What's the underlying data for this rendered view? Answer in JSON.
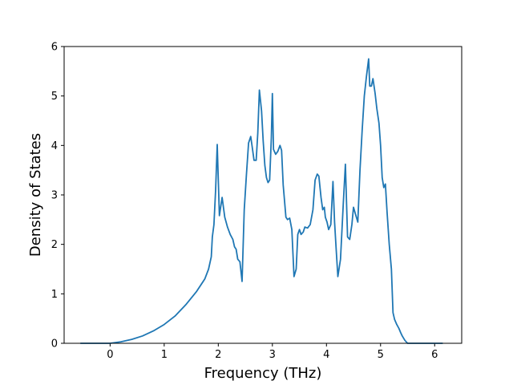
{
  "chart_data": {
    "type": "line",
    "title": "",
    "xlabel": "Frequency (THz)",
    "ylabel": "Density of States",
    "xlim": [
      -0.85,
      6.5
    ],
    "ylim": [
      0,
      6
    ],
    "xticks": [
      0,
      1,
      2,
      3,
      4,
      5,
      6
    ],
    "yticks": [
      0,
      1,
      2,
      3,
      4,
      5,
      6
    ],
    "xtick_labels": [
      "0",
      "1",
      "2",
      "3",
      "4",
      "5",
      "6"
    ],
    "ytick_labels": [
      "0",
      "1",
      "2",
      "3",
      "4",
      "5",
      "6"
    ],
    "grid": false,
    "legend": "none",
    "series": [
      {
        "color": "#1f77b4",
        "x": [
          -0.55,
          -0.3,
          0.0,
          0.2,
          0.4,
          0.6,
          0.8,
          1.0,
          1.2,
          1.4,
          1.6,
          1.75,
          1.82,
          1.87,
          1.89,
          1.92,
          1.95,
          1.98,
          2.02,
          2.07,
          2.12,
          2.17,
          2.22,
          2.27,
          2.3,
          2.33,
          2.36,
          2.4,
          2.44,
          2.48,
          2.52,
          2.56,
          2.6,
          2.63,
          2.66,
          2.7,
          2.73,
          2.76,
          2.8,
          2.83,
          2.86,
          2.89,
          2.92,
          2.95,
          2.98,
          3.0,
          3.02,
          3.06,
          3.1,
          3.14,
          3.17,
          3.2,
          3.25,
          3.28,
          3.32,
          3.36,
          3.4,
          3.44,
          3.47,
          3.5,
          3.53,
          3.57,
          3.6,
          3.65,
          3.7,
          3.75,
          3.79,
          3.83,
          3.86,
          3.9,
          3.93,
          3.96,
          3.98,
          4.01,
          4.04,
          4.08,
          4.12,
          4.15,
          4.18,
          4.21,
          4.26,
          4.31,
          4.35,
          4.39,
          4.43,
          4.47,
          4.5,
          4.54,
          4.58,
          4.62,
          4.66,
          4.7,
          4.74,
          4.78,
          4.8,
          4.83,
          4.86,
          4.9,
          4.93,
          4.97,
          5.0,
          5.03,
          5.06,
          5.09,
          5.12,
          5.16,
          5.2,
          5.23,
          5.26,
          5.3,
          5.34,
          5.37,
          5.4,
          5.45,
          5.5,
          5.55,
          5.6,
          5.75,
          5.9,
          6.05,
          6.15
        ],
        "y": [
          0.0,
          0.0,
          0.0,
          0.03,
          0.08,
          0.15,
          0.25,
          0.38,
          0.55,
          0.78,
          1.05,
          1.3,
          1.5,
          1.75,
          2.15,
          2.4,
          3.1,
          4.02,
          2.58,
          2.95,
          2.55,
          2.35,
          2.2,
          2.1,
          1.95,
          1.9,
          1.7,
          1.65,
          1.25,
          2.7,
          3.4,
          4.05,
          4.18,
          3.95,
          3.7,
          3.7,
          4.25,
          5.12,
          4.7,
          4.1,
          3.6,
          3.35,
          3.25,
          3.3,
          4.15,
          5.05,
          3.92,
          3.82,
          3.88,
          4.0,
          3.9,
          3.2,
          2.55,
          2.5,
          2.53,
          2.3,
          1.35,
          1.5,
          2.2,
          2.3,
          2.2,
          2.25,
          2.35,
          2.33,
          2.4,
          2.7,
          3.3,
          3.42,
          3.38,
          2.95,
          2.7,
          2.75,
          2.55,
          2.45,
          2.3,
          2.4,
          3.27,
          2.45,
          1.9,
          1.35,
          1.7,
          2.8,
          3.62,
          2.15,
          2.1,
          2.4,
          2.75,
          2.6,
          2.45,
          3.5,
          4.3,
          5.0,
          5.4,
          5.75,
          5.2,
          5.2,
          5.35,
          5.05,
          4.75,
          4.45,
          4.0,
          3.35,
          3.15,
          3.22,
          2.65,
          2.0,
          1.5,
          0.62,
          0.48,
          0.38,
          0.3,
          0.22,
          0.15,
          0.06,
          0.0,
          0.0,
          0.0,
          0.0,
          0.0,
          0.0,
          0.0
        ]
      }
    ]
  }
}
